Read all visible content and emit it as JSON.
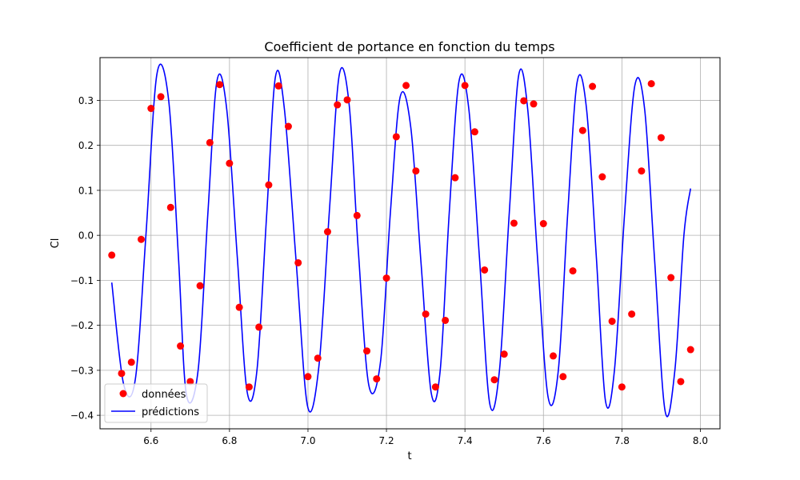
{
  "chart_data": {
    "type": "line",
    "title": "Coefficient de portance en fonction du temps",
    "xlabel": "t",
    "ylabel": "Cl",
    "xlim": [
      6.47,
      8.05
    ],
    "ylim": [
      -0.43,
      0.395
    ],
    "xticks": [
      6.6,
      6.8,
      7.0,
      7.2,
      7.4,
      7.6,
      7.8,
      8.0
    ],
    "xtick_labels": [
      "6.6",
      "6.8",
      "7.0",
      "7.2",
      "7.4",
      "7.6",
      "7.8",
      "8.0"
    ],
    "yticks": [
      -0.4,
      -0.3,
      -0.2,
      -0.1,
      0.0,
      0.1,
      0.2,
      0.3
    ],
    "ytick_labels": [
      "−0.4",
      "−0.3",
      "−0.2",
      "−0.1",
      "0.0",
      "0.1",
      "0.2",
      "0.3"
    ],
    "grid": true,
    "legend_position": "bottom-left",
    "series": [
      {
        "name": "données",
        "kind": "scatter",
        "color": "#ff0000",
        "x": [
          6.5,
          6.525,
          6.55,
          6.575,
          6.6,
          6.625,
          6.65,
          6.675,
          6.7,
          6.725,
          6.75,
          6.775,
          6.8,
          6.825,
          6.85,
          6.875,
          6.9,
          6.925,
          6.95,
          6.975,
          7.0,
          7.025,
          7.05,
          7.075,
          7.1,
          7.125,
          7.15,
          7.175,
          7.2,
          7.225,
          7.25,
          7.275,
          7.3,
          7.325,
          7.35,
          7.375,
          7.4,
          7.425,
          7.45,
          7.475,
          7.5,
          7.525,
          7.55,
          7.575,
          7.6,
          7.625,
          7.65,
          7.675,
          7.7,
          7.725,
          7.75,
          7.775,
          7.8,
          7.825,
          7.85,
          7.875,
          7.9,
          7.925,
          7.95,
          7.975
        ],
        "y": [
          -0.044,
          -0.307,
          -0.282,
          -0.009,
          0.282,
          0.308,
          0.062,
          -0.246,
          -0.325,
          -0.112,
          0.206,
          0.335,
          0.16,
          -0.16,
          -0.337,
          -0.204,
          0.112,
          0.332,
          0.242,
          -0.061,
          -0.314,
          -0.273,
          0.008,
          0.29,
          0.301,
          0.044,
          -0.257,
          -0.319,
          -0.095,
          0.219,
          0.333,
          0.143,
          -0.175,
          -0.337,
          -0.189,
          0.128,
          0.333,
          0.23,
          -0.077,
          -0.321,
          -0.264,
          0.027,
          0.299,
          0.292,
          0.026,
          -0.268,
          -0.314,
          -0.079,
          0.233,
          0.331,
          0.13,
          -0.191,
          -0.337,
          -0.175,
          0.143,
          0.337,
          0.217,
          -0.094,
          -0.325,
          -0.254
        ]
      },
      {
        "name": "prédictions",
        "kind": "line",
        "color": "#0000ff",
        "x": [
          6.5,
          6.53,
          6.56,
          6.587,
          6.615,
          6.645,
          6.67,
          6.69,
          6.72,
          6.745,
          6.768,
          6.793,
          6.82,
          6.845,
          6.87,
          6.895,
          6.917,
          6.94,
          6.97,
          6.999,
          7.028,
          7.055,
          7.08,
          7.105,
          7.128,
          7.155,
          7.185,
          7.21,
          7.235,
          7.262,
          7.288,
          7.314,
          7.337,
          7.36,
          7.385,
          7.41,
          7.437,
          7.463,
          7.488,
          7.513,
          7.537,
          7.56,
          7.585,
          7.612,
          7.638,
          7.662,
          7.686,
          7.71,
          7.735,
          7.758,
          7.781,
          7.807,
          7.833,
          7.858,
          7.883,
          7.91,
          7.935,
          7.958,
          7.975
        ],
        "y": [
          -0.105,
          -0.33,
          -0.32,
          0.0,
          0.358,
          0.3,
          -0.05,
          -0.353,
          -0.3,
          0.05,
          0.343,
          0.28,
          -0.05,
          -0.348,
          -0.3,
          0.05,
          0.352,
          0.28,
          -0.06,
          -0.38,
          -0.29,
          0.06,
          0.358,
          0.29,
          -0.03,
          -0.333,
          -0.28,
          0.05,
          0.308,
          0.24,
          -0.06,
          -0.35,
          -0.3,
          0.05,
          0.343,
          0.28,
          -0.05,
          -0.373,
          -0.3,
          0.05,
          0.356,
          0.28,
          -0.05,
          -0.36,
          -0.3,
          0.05,
          0.341,
          0.28,
          -0.05,
          -0.367,
          -0.3,
          0.05,
          0.333,
          0.28,
          -0.05,
          -0.39,
          -0.3,
          0.0,
          0.104
        ]
      }
    ]
  }
}
